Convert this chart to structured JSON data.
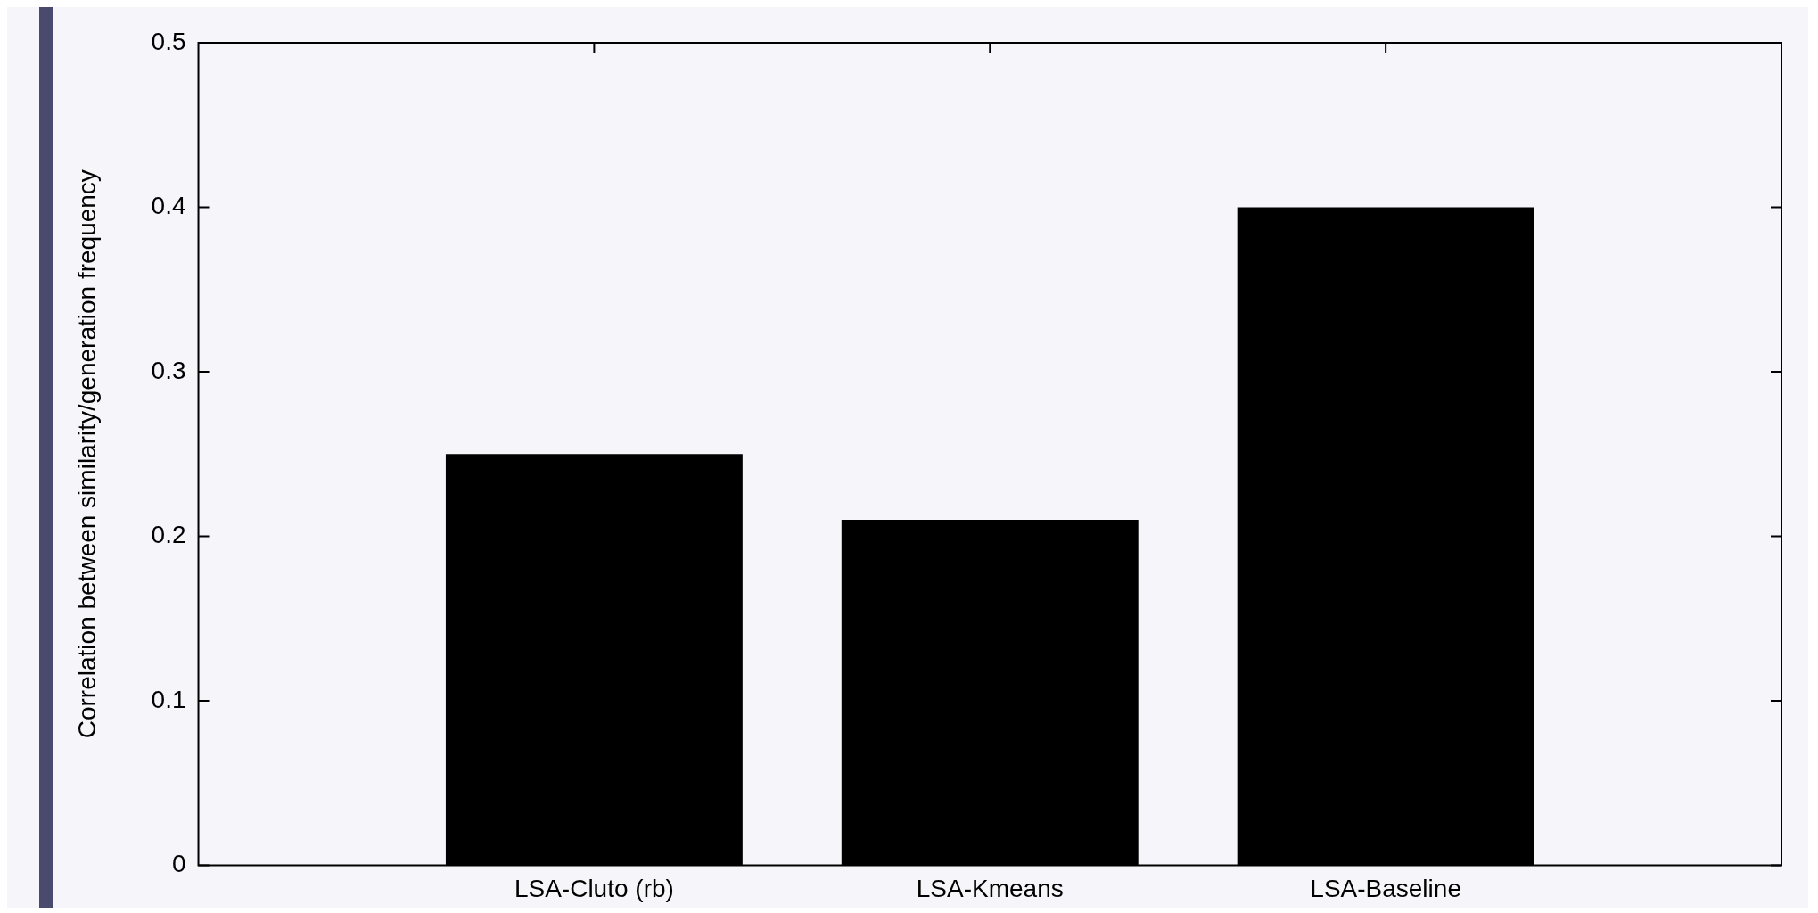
{
  "chart_data": {
    "type": "bar",
    "ylabel": "Correlation between similarity/generation frequency",
    "categories": [
      "LSA-Cluto (rb)",
      "LSA-Kmeans",
      "LSA-Baseline"
    ],
    "values": [
      0.25,
      0.21,
      0.4
    ],
    "color": "#000000",
    "ylim": [
      0,
      0.5
    ],
    "yticks": [
      0,
      0.1,
      0.2,
      0.3,
      0.4,
      0.5
    ],
    "grid": false,
    "legend": false
  }
}
